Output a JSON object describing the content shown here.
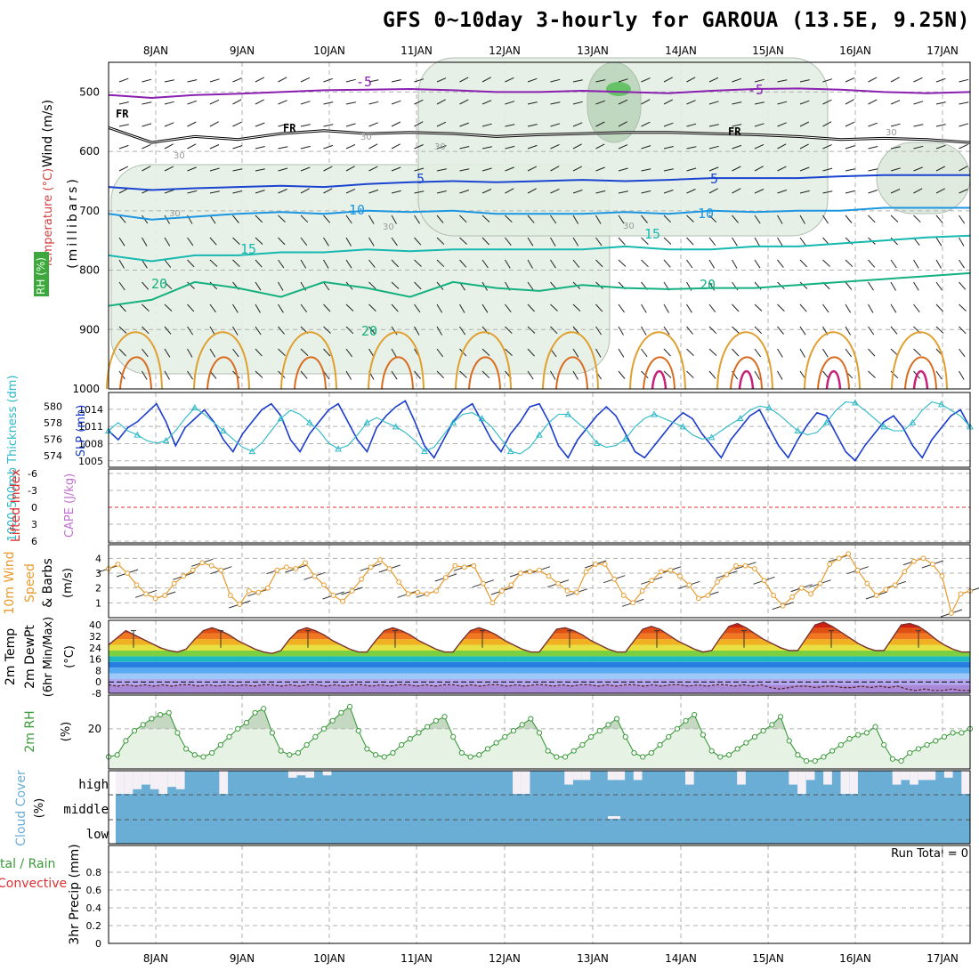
{
  "title": "GFS 0~10day 3-hourly for GAROUA (13.5E, 9.25N)",
  "date_labels": [
    "8JAN",
    "9JAN",
    "10JAN",
    "11JAN",
    "12JAN",
    "13JAN",
    "14JAN",
    "15JAN",
    "16JAN",
    "17JAN"
  ],
  "run_total": "Run Total = 0",
  "chart_data": [
    {
      "type": "line",
      "panel": "upper-air cross section",
      "y_label": "(millibars)",
      "y_ticks": [
        "500",
        "600",
        "700",
        "800",
        "900",
        "1000"
      ],
      "ylim": [
        450,
        1000
      ],
      "y_inverted": true,
      "side_labels": {
        "wind": "Wind (m/s)",
        "temperature": "Temperature (°C)",
        "rh": "RH (%)"
      },
      "isotherm_labels": [
        {
          "text": "-5",
          "color": "#8a1fb0"
        },
        {
          "text": "FR",
          "color": "#000000"
        },
        {
          "text": "5",
          "color": "#1a44d0"
        },
        {
          "text": "10",
          "color": "#1c96e0"
        },
        {
          "text": "15",
          "color": "#16b8b0"
        },
        {
          "text": "20",
          "color": "#14b080"
        },
        {
          "text": "30",
          "color": "#999999"
        }
      ],
      "isotherms": [
        {
          "name": "-5",
          "color": "#8a1fb0",
          "pressure": [
            505,
            510,
            505,
            503,
            500,
            497,
            496,
            495,
            497,
            500,
            500,
            498,
            500,
            502,
            498,
            495,
            494,
            496,
            500,
            502,
            500
          ]
        },
        {
          "name": "FR",
          "color": "#000000",
          "pressure": [
            560,
            585,
            575,
            580,
            570,
            565,
            570,
            568,
            570,
            575,
            572,
            570,
            568,
            568,
            570,
            572,
            575,
            580,
            578,
            580,
            585
          ]
        },
        {
          "name": "5",
          "color": "#1a44d0",
          "pressure": [
            660,
            665,
            662,
            660,
            658,
            660,
            655,
            652,
            650,
            652,
            650,
            648,
            650,
            648,
            645,
            645,
            645,
            642,
            640,
            640,
            640
          ]
        },
        {
          "name": "10",
          "color": "#1c96e0",
          "pressure": [
            705,
            715,
            710,
            705,
            702,
            705,
            700,
            702,
            700,
            705,
            705,
            705,
            702,
            705,
            700,
            702,
            700,
            700,
            695,
            695,
            695
          ]
        },
        {
          "name": "15",
          "color": "#16b8b0",
          "pressure": [
            775,
            785,
            775,
            775,
            770,
            770,
            765,
            768,
            765,
            765,
            765,
            765,
            760,
            765,
            765,
            760,
            760,
            755,
            750,
            745,
            742
          ]
        },
        {
          "name": "20",
          "color": "#14b080",
          "pressure": [
            860,
            850,
            820,
            830,
            845,
            820,
            830,
            845,
            820,
            830,
            835,
            825,
            830,
            832,
            830,
            830,
            825,
            820,
            815,
            810,
            805
          ]
        }
      ],
      "x": [
        "7.5JAN",
        "8JAN",
        "8.5JAN",
        "9JAN",
        "9.5JAN",
        "10JAN",
        "10.5JAN",
        "11JAN",
        "11.5JAN",
        "12JAN",
        "12.5JAN",
        "13JAN",
        "13.5JAN",
        "14JAN",
        "14.5JAN",
        "15JAN",
        "15.5JAN",
        "16JAN",
        "16.5JAN",
        "17JAN",
        "17.3JAN"
      ]
    },
    {
      "type": "line",
      "panel": "thickness / SLP",
      "left_label": "1000-500mb Thickness (dm)",
      "right_label": "SLP (mb)",
      "left_ticks": [
        "574",
        "576",
        "578",
        "580"
      ],
      "right_ticks": [
        "1005",
        "1008",
        "1011",
        "1014"
      ],
      "series": [
        {
          "name": "SLP (mb)",
          "color": "#1a3ccc",
          "ylim": [
            1005,
            1016
          ],
          "values": [
            1010.5,
            1009,
            1011,
            1012,
            1013.5,
            1015,
            1012,
            1008,
            1011,
            1012.5,
            1014,
            1012,
            1009,
            1007,
            1010,
            1012,
            1014,
            1015,
            1013,
            1009,
            1007,
            1010,
            1012,
            1014,
            1015,
            1012,
            1009,
            1007,
            1011,
            1013,
            1014.5,
            1015.5,
            1012,
            1008,
            1006,
            1009,
            1012,
            1014,
            1015,
            1012,
            1009,
            1007,
            1010,
            1012,
            1014.5,
            1015,
            1012,
            1008,
            1006,
            1009,
            1011,
            1013,
            1014.5,
            1013,
            1010,
            1007,
            1006,
            1008,
            1010,
            1012,
            1013.5,
            1012.5,
            1010,
            1008,
            1006,
            1009,
            1011,
            1013,
            1014,
            1011,
            1008,
            1006,
            1009,
            1011.5,
            1013.5,
            1013,
            1010,
            1007,
            1005.5,
            1008,
            1010,
            1012,
            1013,
            1011,
            1008,
            1006,
            1009,
            1011,
            1013,
            1014,
            1011
          ]
        },
        {
          "name": "Thickness (dm)",
          "color": "#2cb8c8",
          "ylim": [
            573,
            581
          ],
          "values": [
            577,
            578,
            577,
            576.5,
            575.8,
            575.5,
            575.8,
            577,
            578.5,
            579.8,
            579,
            578,
            577,
            576,
            575,
            574.5,
            575.5,
            577,
            578.5,
            579.5,
            579,
            578,
            577,
            575.5,
            574.8,
            575.2,
            576.5,
            578,
            578.6,
            578,
            577.5,
            576.8,
            575.8,
            574.5,
            575,
            576.5,
            578,
            579,
            579.2,
            578.5,
            577.5,
            576,
            574.5,
            574.2,
            575,
            576.5,
            578,
            579,
            579,
            578,
            577,
            575.5,
            575,
            575.2,
            576,
            577.5,
            578.5,
            579,
            578.5,
            578,
            577.5,
            576.5,
            576,
            576.2,
            577,
            577.8,
            578.5,
            579.5,
            580,
            579.8,
            579,
            578,
            577,
            576.5,
            576.8,
            578,
            579.5,
            580.5,
            580.4,
            579.5,
            578.5,
            577.5,
            577,
            577,
            578,
            579.5,
            580.5,
            580.2,
            579.5,
            578.8,
            577.5
          ]
        }
      ]
    },
    {
      "type": "line",
      "panel": "stability",
      "left_label": "Lifted Index",
      "right_label": "CAPE (J/kg)",
      "left_ticks": [
        "-6",
        "-3",
        "0",
        "3",
        "6"
      ],
      "lifted_index_zero_line": 0
    },
    {
      "type": "line",
      "panel": "10m wind",
      "left_label": "10m Wind Speed & Barbs",
      "unit_label": "(m/s)",
      "y_ticks": [
        "1",
        "2",
        "3",
        "4"
      ],
      "ylim": [
        0,
        4.8
      ],
      "series": [
        {
          "name": "10m Wind Speed",
          "color": "#e89a2a",
          "values": [
            3.3,
            3.6,
            3.0,
            2.2,
            1.6,
            1.3,
            1.5,
            2.3,
            2.8,
            3.2,
            3.7,
            3.5,
            3.2,
            1.5,
            0.9,
            1.8,
            1.7,
            2.0,
            3.2,
            3.4,
            3.3,
            3.7,
            2.8,
            2.2,
            1.5,
            1.1,
            1.8,
            2.6,
            3.4,
            3.9,
            3.3,
            2.4,
            1.6,
            1.7,
            1.6,
            1.8,
            2.7,
            3.5,
            3.4,
            3.5,
            2.3,
            1.0,
            1.8,
            2.2,
            3.0,
            3.1,
            3.2,
            2.8,
            2.3,
            1.8,
            1.7,
            3.1,
            3.6,
            3.6,
            2.6,
            1.5,
            1.0,
            1.8,
            2.5,
            3.1,
            3.2,
            2.8,
            2.2,
            1.3,
            1.5,
            2.4,
            2.9,
            3.5,
            3.5,
            3.3,
            2.5,
            1.5,
            0.8,
            1.4,
            2.0,
            1.6,
            2.3,
            3.6,
            4.0,
            4.3,
            3.2,
            2.3,
            1.5,
            1.9,
            2.2,
            3.1,
            3.8,
            4.0,
            3.6,
            2.8,
            0.3,
            1.6,
            1.8
          ]
        }
      ]
    },
    {
      "type": "area",
      "panel": "2m temperature",
      "left_label": "2m Temp 2m DewPt (6hr Min/Max)",
      "unit_label": "(°C)",
      "y_ticks": [
        "-8",
        "0",
        "8",
        "16",
        "24",
        "32",
        "40"
      ],
      "ylim": [
        -8,
        42
      ],
      "series": [
        {
          "name": "2m Temp",
          "color": "#7a3030",
          "values": [
            26,
            31,
            36,
            33,
            30,
            27,
            24,
            22,
            21,
            23,
            30,
            36,
            38,
            36,
            33,
            29,
            26,
            23,
            21,
            20,
            22,
            30,
            36,
            38,
            36,
            33,
            29,
            26,
            23,
            21,
            21,
            29,
            36,
            38,
            36,
            33,
            29,
            26,
            23,
            21,
            21,
            29,
            36,
            38,
            36,
            33,
            29,
            26,
            23,
            21,
            21,
            29,
            37,
            38,
            36,
            33,
            29,
            26,
            23,
            21,
            21,
            29,
            37,
            39,
            37,
            33,
            29,
            26,
            23,
            21,
            22,
            31,
            39,
            41,
            38,
            34,
            30,
            27,
            24,
            22,
            22,
            31,
            40,
            42,
            39,
            35,
            31,
            27,
            24,
            22,
            22,
            31,
            40,
            41,
            39,
            35,
            30,
            26,
            23,
            21,
            21
          ]
        },
        {
          "name": "2m DewPt",
          "color": "#7a3030",
          "values": [
            -2,
            -3,
            -2,
            -3,
            -2,
            -3,
            -2,
            -3,
            -2,
            -2,
            -3,
            -2,
            -3,
            -2,
            -3,
            -2,
            -3,
            -2,
            -2,
            -3,
            -2,
            -3,
            -2,
            -2,
            -3,
            -2,
            -3,
            -2,
            -2,
            -3,
            -2,
            -3,
            -2,
            -2,
            -3,
            -2,
            -3,
            -2,
            -2,
            -3,
            -2,
            -3,
            -2,
            -2,
            -3,
            -2,
            -3,
            -2,
            -2,
            -3,
            -2,
            -3,
            -2,
            -2,
            -3,
            -2,
            -3,
            -2,
            -2,
            -3,
            -2,
            -3,
            -2,
            -2,
            -3,
            -2,
            -3,
            -2,
            -2,
            -3,
            -2,
            -3,
            -2,
            -4,
            -5,
            -4,
            -3,
            -3,
            -4,
            -3,
            -3,
            -4,
            -4,
            -3,
            -4,
            -3,
            -4,
            -3,
            -5,
            -6,
            -5,
            -6,
            -6,
            -5,
            -6,
            -6
          ]
        }
      ]
    },
    {
      "type": "area",
      "panel": "2m RH",
      "left_label": "2m RH",
      "unit_label": "(%)",
      "y_ticks": [
        "20"
      ],
      "ylim": [
        0,
        35
      ],
      "series": [
        {
          "name": "2m RH",
          "color": "#3a9a3a",
          "values": [
            6,
            7,
            14,
            19,
            22,
            25,
            27,
            28,
            18,
            10,
            7,
            6,
            8,
            12,
            16,
            20,
            23,
            28,
            30,
            18,
            9,
            7,
            8,
            12,
            16,
            20,
            24,
            28,
            31,
            19,
            10,
            7,
            6,
            8,
            12,
            15,
            18,
            21,
            24,
            26,
            16,
            8,
            6,
            7,
            10,
            13,
            16,
            19,
            22,
            25,
            18,
            9,
            6,
            6,
            9,
            12,
            16,
            19,
            22,
            25,
            16,
            8,
            6,
            8,
            12,
            16,
            20,
            24,
            27,
            17,
            9,
            6,
            7,
            10,
            13,
            16,
            19,
            22,
            26,
            14,
            7,
            4,
            4,
            6,
            9,
            12,
            15,
            17,
            18,
            21,
            12,
            5,
            4,
            8,
            10,
            12,
            14,
            16,
            18,
            18,
            20
          ]
        }
      ]
    },
    {
      "type": "bar",
      "panel": "cloud cover",
      "left_label": "Cloud Cover",
      "unit_label": "(%)",
      "layer_labels": [
        "high",
        "middle",
        "low"
      ],
      "high_cloud_gap_pct": [
        100,
        100,
        80,
        60,
        80,
        100,
        70,
        80,
        0,
        0,
        0,
        0,
        100,
        0,
        0,
        0,
        0,
        0,
        0,
        0,
        30,
        20,
        30,
        0,
        20,
        0,
        0,
        0,
        0,
        0,
        0,
        0,
        0,
        0,
        0,
        0,
        0,
        0,
        0,
        0,
        0,
        0,
        0,
        0,
        0,
        0,
        0,
        0,
        0,
        0,
        0,
        0,
        0,
        0,
        0,
        0,
        0,
        0,
        0,
        0,
        0,
        0,
        0,
        0,
        0,
        0,
        0,
        0,
        0,
        0,
        0,
        0,
        0,
        0,
        0,
        0,
        0,
        0,
        0,
        0,
        0,
        0,
        0,
        0,
        0,
        0,
        0,
        0,
        0,
        0,
        0,
        0,
        0,
        0,
        0,
        0,
        0,
        0,
        0
      ]
    },
    {
      "type": "bar",
      "panel": "3hr precip",
      "left_label": "Total / Rain Convective",
      "unit_label": "3hr Precip (mm)",
      "y_ticks": [
        "0",
        "0.2",
        "0.4",
        "0.6",
        "0.8"
      ],
      "ylim": [
        0,
        1
      ],
      "values": []
    }
  ],
  "colors": {
    "thickness": "#2cb8c8",
    "slp": "#1a3ccc",
    "wind_speed": "#e89a2a",
    "rh": "#3a9a3a",
    "cloud": "#6aaed6",
    "lifted_index": "#e03030",
    "cape": "#c070d0"
  }
}
